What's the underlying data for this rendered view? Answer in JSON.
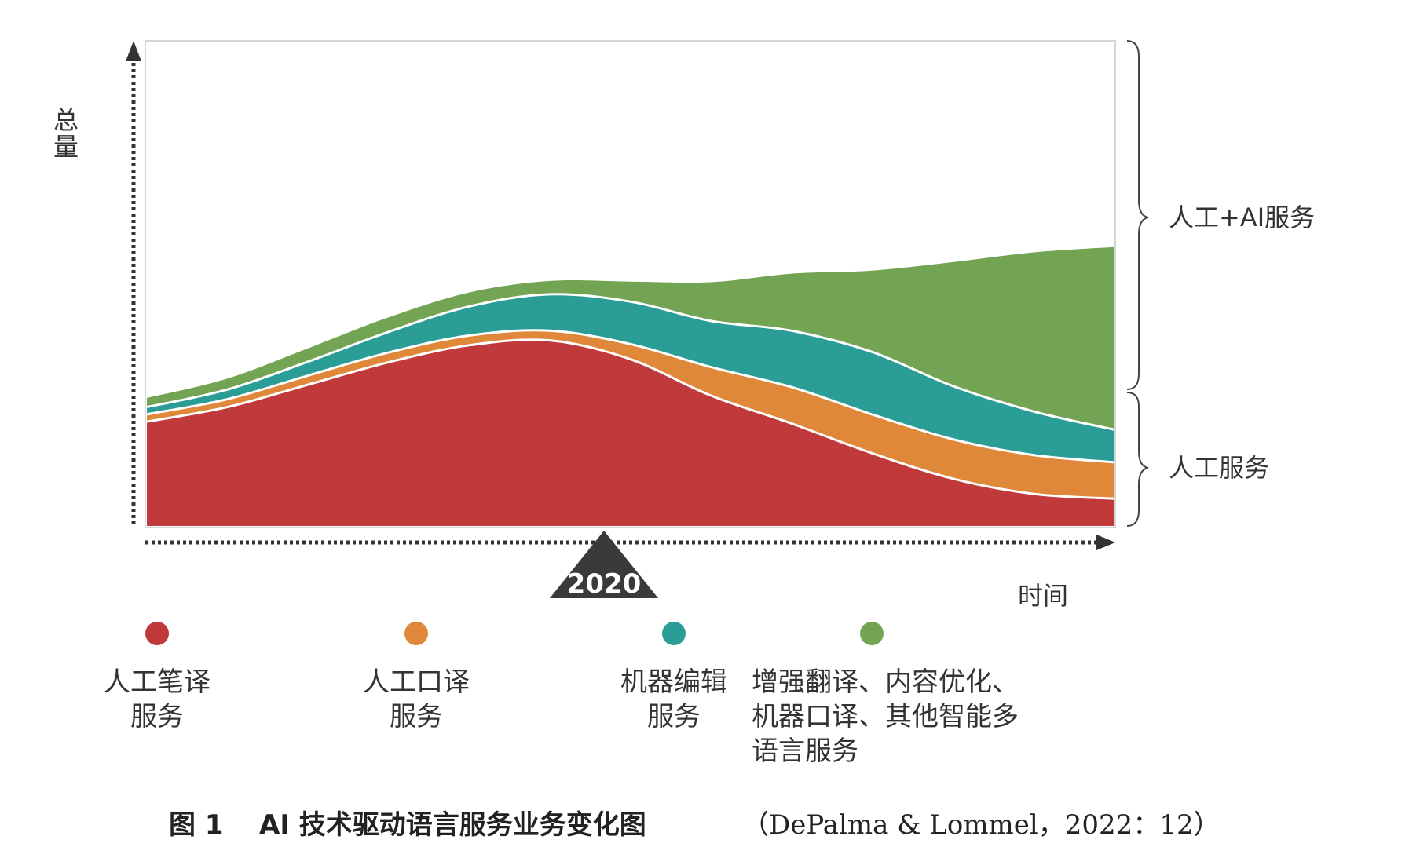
{
  "chart_data": {
    "type": "area",
    "stacked": true,
    "ylabel": "总量",
    "xlabel": "时间",
    "marker_label": "2020",
    "x": [
      0,
      1,
      2,
      3,
      4,
      5,
      6,
      7,
      8,
      9,
      10,
      11,
      12
    ],
    "series": [
      {
        "name": "人工笔译服务",
        "color": "#c0393b",
        "values": [
          17.2,
          19.6,
          23.3,
          27.0,
          29.8,
          30.6,
          27.5,
          21.5,
          16.9,
          12.0,
          7.8,
          5.3,
          4.5
        ]
      },
      {
        "name": "人工口译服务",
        "color": "#e0883a",
        "values": [
          1.2,
          1.3,
          1.5,
          1.6,
          1.6,
          1.6,
          2.5,
          4.7,
          6.0,
          6.4,
          6.5,
          6.4,
          6.0
        ]
      },
      {
        "name": "机器编辑服务",
        "color": "#2a9d97",
        "values": [
          1.2,
          1.6,
          2.3,
          3.4,
          4.8,
          6.0,
          7.0,
          7.6,
          9.3,
          10.3,
          8.8,
          7.2,
          5.4
        ]
      },
      {
        "name": "增强翻译、内容优化、机器口译、其他智能多语言服务",
        "color": "#72a453",
        "values": [
          1.5,
          1.8,
          2.2,
          2.4,
          2.3,
          2.2,
          3.3,
          6.4,
          9.4,
          13.4,
          20.4,
          26.2,
          30.1
        ]
      }
    ],
    "ylim": [
      0,
      80
    ],
    "grid": false,
    "legend_position": "bottom"
  },
  "brackets": {
    "upper": "人工+AI服务",
    "lower": "人工服务"
  },
  "legend": [
    {
      "lines": [
        "人工笔译",
        "服务"
      ],
      "color": "#c0393b"
    },
    {
      "lines": [
        "人工口译",
        "服务"
      ],
      "color": "#e0883a"
    },
    {
      "lines": [
        "机器编辑",
        "服务"
      ],
      "color": "#2a9d97"
    },
    {
      "lines": [
        "增强翻译、内容优化、",
        "机器口译、其他智能多",
        "语言服务"
      ],
      "color": "#72a453"
    }
  ],
  "caption": {
    "prefix": "图 1",
    "title": "AI 技术驱动语言服务业务变化图",
    "source": "（DePalma & Lommel，2022：12）"
  }
}
